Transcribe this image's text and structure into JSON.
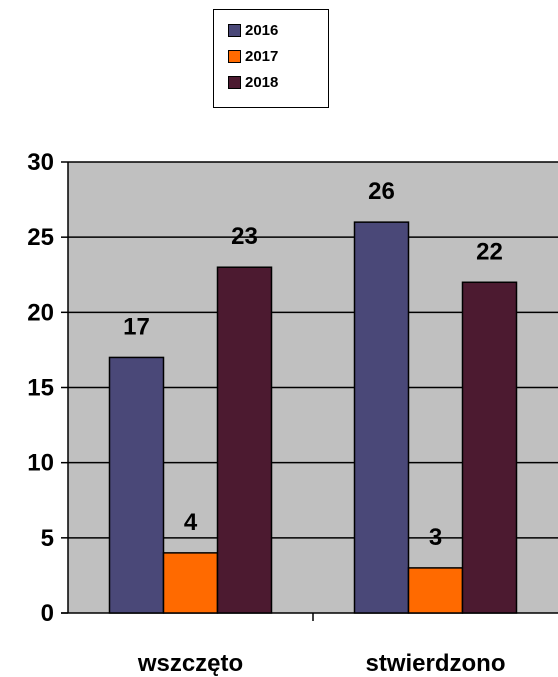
{
  "chart_data": {
    "type": "bar",
    "title": "",
    "xlabel": "",
    "ylabel": "",
    "categories": [
      "wszczęto",
      "stwierdzono"
    ],
    "series": [
      {
        "name": "2016",
        "values": [
          17,
          26
        ],
        "color": "#4a4878"
      },
      {
        "name": "2017",
        "values": [
          4,
          3
        ],
        "color": "#ff6a00"
      },
      {
        "name": "2018",
        "values": [
          23,
          22
        ],
        "color": "#4c1a30"
      }
    ],
    "ylim": [
      0,
      30
    ],
    "yticks": [
      "0",
      "5",
      "10",
      "15",
      "20",
      "25",
      "30"
    ],
    "grid": true,
    "plot_background": "#c0c0c0",
    "legend_position": "top-center"
  }
}
